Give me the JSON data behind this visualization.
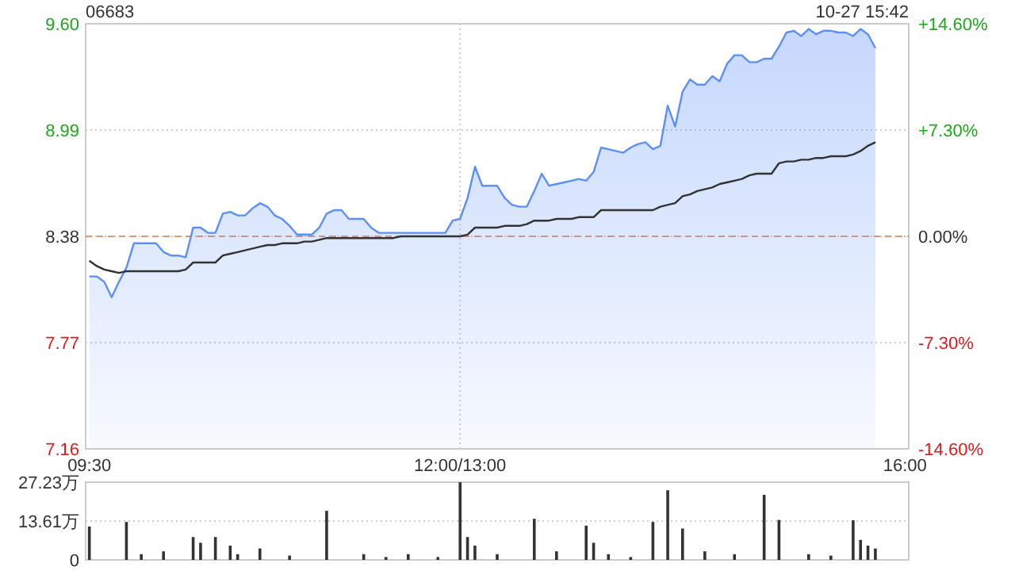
{
  "chart_data": [
    {
      "type": "line",
      "title": "06683",
      "annotations": [
        "10-27 15:42"
      ],
      "categories": [
        "09:30",
        null,
        null,
        null,
        null,
        null,
        null,
        null,
        null,
        null,
        null,
        null,
        null,
        null,
        null,
        null,
        null,
        null,
        null,
        null,
        null,
        null,
        null,
        null,
        null,
        null,
        null,
        null,
        null,
        null,
        null,
        null,
        null,
        null,
        null,
        null,
        null,
        null,
        null,
        null,
        null,
        null,
        null,
        null,
        null,
        null,
        null,
        null,
        null,
        null,
        "12:00/13:00",
        null,
        null,
        null,
        null,
        null,
        null,
        null,
        null,
        null,
        null,
        null,
        null,
        null,
        null,
        null,
        null,
        null,
        null,
        null,
        null,
        null,
        null,
        null,
        null,
        null,
        null,
        null,
        null,
        null,
        null,
        null,
        null,
        null,
        null,
        null,
        null,
        null,
        null,
        null,
        null,
        null,
        null,
        null,
        null,
        null,
        null,
        null,
        null,
        null,
        null,
        null,
        null,
        null,
        null,
        null,
        null,
        null,
        null,
        null,
        "16:00"
      ],
      "ylim": [
        7.16,
        9.6
      ],
      "yticks": [
        {
          "value": 7.16,
          "label": "7.16"
        },
        {
          "value": 7.77,
          "label": "7.77"
        },
        {
          "value": 8.38,
          "label": "8.38"
        },
        {
          "value": 8.99,
          "label": "8.99"
        },
        {
          "value": 9.6,
          "label": "9.60"
        }
      ],
      "y2lim": [
        -14.6,
        14.6
      ],
      "y2ticks": [
        {
          "value": -14.6,
          "label": "-14.60%"
        },
        {
          "value": -7.3,
          "label": "-7.30%"
        },
        {
          "value": 0,
          "label": "0.00%"
        },
        {
          "value": 7.3,
          "label": "+7.30%"
        },
        {
          "value": 14.6,
          "label": "+14.60%"
        }
      ],
      "grid": true,
      "ref_lines": [
        {
          "axis": "y",
          "value": 8.38,
          "color": "#e8956a",
          "line_style": "dashed"
        }
      ],
      "series": [
        {
          "type": "area",
          "color": "#5b8ff9",
          "values": [
            8.15,
            8.15,
            8.12,
            8.03,
            8.12,
            8.2,
            8.34,
            8.34,
            8.34,
            8.34,
            8.29,
            8.27,
            8.27,
            8.26,
            8.43,
            8.43,
            8.4,
            8.4,
            8.51,
            8.52,
            8.5,
            8.5,
            8.54,
            8.57,
            8.55,
            8.5,
            8.48,
            8.44,
            8.39,
            8.39,
            8.39,
            8.43,
            8.51,
            8.53,
            8.53,
            8.48,
            8.48,
            8.48,
            8.43,
            8.4,
            8.4,
            8.4,
            8.4,
            8.4,
            8.4,
            8.4,
            8.4,
            8.4,
            8.4,
            8.47,
            8.48,
            8.6,
            8.78,
            8.67,
            8.67,
            8.67,
            8.6,
            8.56,
            8.55,
            8.55,
            8.64,
            8.74,
            8.67,
            8.68,
            8.69,
            8.7,
            8.71,
            8.7,
            8.75,
            8.89,
            8.88,
            8.87,
            8.86,
            8.89,
            8.91,
            8.92,
            8.88,
            8.9,
            9.13,
            9.01,
            9.21,
            9.28,
            9.25,
            9.25,
            9.3,
            9.27,
            9.37,
            9.42,
            9.42,
            9.38,
            9.38,
            9.4,
            9.4,
            9.47,
            9.55,
            9.56,
            9.53,
            9.57,
            9.54,
            9.56,
            9.56,
            9.55,
            9.55,
            9.53,
            9.57,
            9.54,
            9.46,
            null,
            null,
            null,
            null
          ]
        },
        {
          "type": "line",
          "color": "#333333",
          "values": [
            8.24,
            8.21,
            8.19,
            8.18,
            8.17,
            8.18,
            8.18,
            8.18,
            8.18,
            8.18,
            8.18,
            8.18,
            8.18,
            8.19,
            8.23,
            8.23,
            8.23,
            8.23,
            8.27,
            8.28,
            8.29,
            8.3,
            8.31,
            8.32,
            8.33,
            8.33,
            8.34,
            8.34,
            8.34,
            8.35,
            8.35,
            8.36,
            8.37,
            8.37,
            8.37,
            8.37,
            8.37,
            8.37,
            8.37,
            8.37,
            8.37,
            8.37,
            8.38,
            8.38,
            8.38,
            8.38,
            8.38,
            8.38,
            8.38,
            8.38,
            8.38,
            8.39,
            8.43,
            8.43,
            8.43,
            8.43,
            8.44,
            8.44,
            8.44,
            8.45,
            8.47,
            8.47,
            8.47,
            8.48,
            8.48,
            8.48,
            8.49,
            8.49,
            8.49,
            8.53,
            8.53,
            8.53,
            8.53,
            8.53,
            8.53,
            8.53,
            8.53,
            8.55,
            8.56,
            8.57,
            8.61,
            8.62,
            8.64,
            8.65,
            8.66,
            8.68,
            8.69,
            8.7,
            8.71,
            8.73,
            8.74,
            8.74,
            8.74,
            8.8,
            8.81,
            8.81,
            8.82,
            8.82,
            8.83,
            8.83,
            8.84,
            8.84,
            8.84,
            8.85,
            8.87,
            8.9,
            8.92,
            null,
            null,
            null,
            null
          ]
        }
      ]
    },
    {
      "type": "bar",
      "color": "#333333",
      "tick_labels": "y",
      "grid": "y",
      "categories": [
        null,
        null,
        null,
        null,
        null,
        null,
        null,
        null,
        null,
        null,
        null,
        null,
        null,
        null,
        null,
        null,
        null,
        null,
        null,
        null,
        null,
        null,
        null,
        null,
        null,
        null,
        null,
        null,
        null,
        null,
        null,
        null,
        null,
        null,
        null,
        null,
        null,
        null,
        null,
        null,
        null,
        null,
        null,
        null,
        null,
        null,
        null,
        null,
        null,
        null,
        null,
        null,
        null,
        null,
        null,
        null,
        null,
        null,
        null,
        null,
        null,
        null,
        null,
        null,
        null,
        null,
        null,
        null,
        null,
        null,
        null,
        null,
        null,
        null,
        null,
        null,
        null,
        null,
        null,
        null,
        null,
        null,
        null,
        null,
        null,
        null,
        null,
        null,
        null,
        null,
        null,
        null,
        null,
        null,
        null,
        null,
        null,
        null,
        null,
        null,
        null,
        null,
        null,
        null,
        null,
        null,
        null,
        null,
        null,
        null,
        null
      ],
      "ylim": [
        0,
        27.23
      ],
      "yticks": [
        {
          "value": 0,
          "label": "0"
        },
        {
          "value": 13.61,
          "label": "13.61万"
        },
        {
          "value": 27.23,
          "label": "27.23万"
        }
      ],
      "values": [
        11.7,
        null,
        null,
        null,
        null,
        13.3,
        null,
        2,
        null,
        null,
        3,
        null,
        null,
        null,
        8,
        6,
        null,
        8,
        null,
        5,
        2,
        null,
        null,
        4,
        null,
        null,
        null,
        1.5,
        null,
        null,
        null,
        null,
        17.2,
        null,
        null,
        null,
        null,
        2,
        null,
        null,
        1,
        null,
        null,
        2,
        null,
        null,
        null,
        1,
        null,
        null,
        27.2,
        8,
        5,
        null,
        null,
        2,
        null,
        null,
        null,
        null,
        14.4,
        null,
        null,
        3,
        null,
        null,
        null,
        12,
        6,
        null,
        2,
        null,
        null,
        1,
        null,
        null,
        13.3,
        null,
        24.4,
        null,
        11,
        null,
        null,
        3,
        null,
        null,
        null,
        2,
        null,
        null,
        null,
        22.8,
        null,
        14,
        null,
        null,
        null,
        2,
        null,
        null,
        1.5,
        null,
        null,
        13.9,
        7,
        5,
        4,
        null,
        null,
        null,
        null
      ]
    }
  ]
}
